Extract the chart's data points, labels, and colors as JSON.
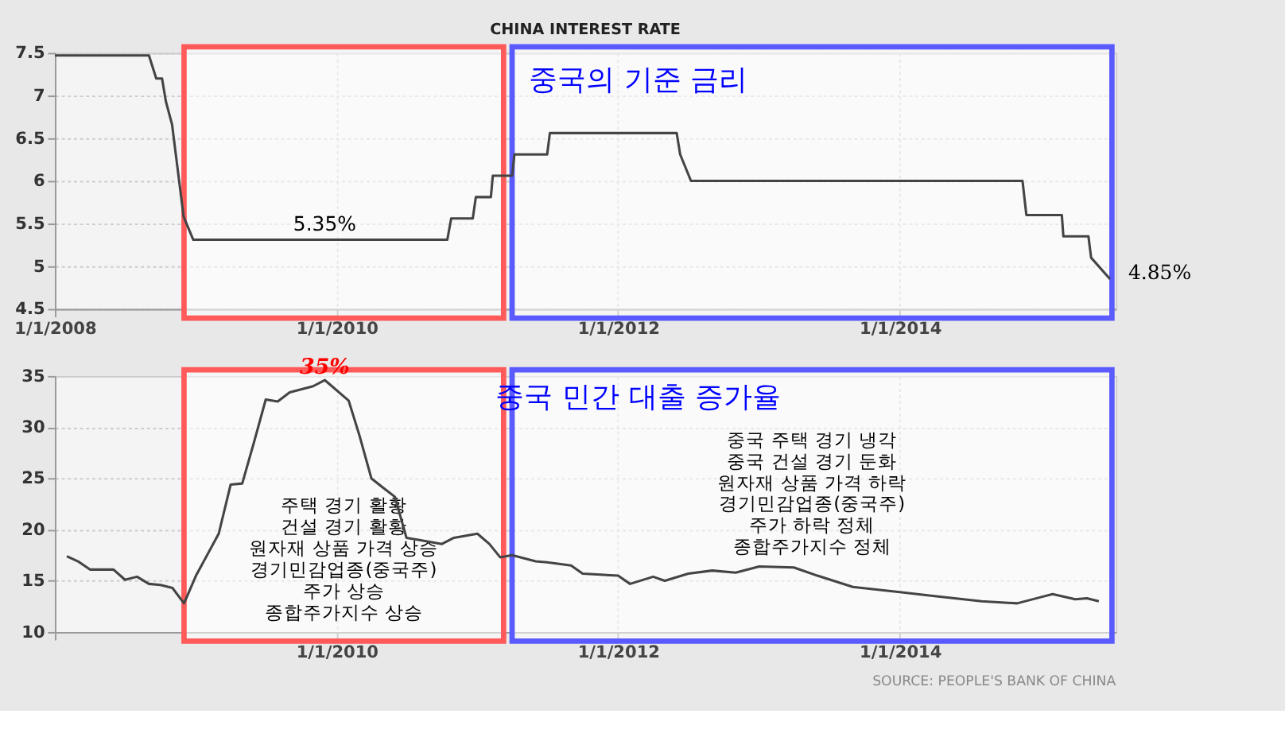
{
  "chart_data": [
    {
      "type": "line",
      "title": "CHINA INTEREST RATE",
      "subtitle": "중국의 기준 금리",
      "xlim": [
        "2008-01-01",
        "2015-07-15"
      ],
      "ylim": [
        4.5,
        7.5
      ],
      "yticks": [
        4.5,
        5,
        5.5,
        6,
        6.5,
        7,
        7.5
      ],
      "xticks": [
        {
          "value": "2008-01-01",
          "label": "1/1/2008"
        },
        {
          "value": "2010-01-01",
          "label": "1/1/2010"
        },
        {
          "value": "2012-01-01",
          "label": "1/1/2012"
        },
        {
          "value": "2014-01-01",
          "label": "1/1/2014"
        }
      ],
      "grid": true,
      "series": [
        {
          "color": "#444444",
          "x": [
            "2008-01-01",
            "2008-09-01",
            "2008-09-20",
            "2008-10-05",
            "2008-10-15",
            "2008-10-31",
            "2008-11-30",
            "2008-12-25",
            "2010-10-15",
            "2010-10-25",
            "2010-12-20",
            "2010-12-28",
            "2011-02-05",
            "2011-02-10",
            "2011-04-01",
            "2011-04-07",
            "2011-07-01",
            "2011-07-08",
            "2012-06-01",
            "2012-06-10",
            "2012-07-08",
            "2014-11-15",
            "2014-11-25",
            "2015-02-25",
            "2015-03-01",
            "2015-05-05",
            "2015-05-12",
            "2015-06-30"
          ],
          "values": [
            7.47,
            7.47,
            7.2,
            7.2,
            6.93,
            6.66,
            5.58,
            5.31,
            5.31,
            5.56,
            5.56,
            5.81,
            5.81,
            6.06,
            6.06,
            6.31,
            6.31,
            6.56,
            6.56,
            6.31,
            6.0,
            6.0,
            5.6,
            5.6,
            5.35,
            5.35,
            5.1,
            4.85
          ]
        }
      ],
      "bands": [
        {
          "axis": "x",
          "from": "2008-12-01",
          "to": "2011-03-10",
          "color": "#ff5a5a"
        },
        {
          "axis": "x",
          "from": "2011-04-01",
          "to": "2015-07-05",
          "color": "#5a5aff"
        }
      ],
      "annotations": [
        {
          "text": "5.35%",
          "x": "2009-12-01",
          "y": 5.31
        },
        {
          "text": "4.85%",
          "x": "2015-06-30",
          "y": 4.85
        }
      ]
    },
    {
      "type": "line",
      "title": "중국 민간 대출 증가율",
      "xlim": [
        "2008-01-01",
        "2015-07-15"
      ],
      "ylim": [
        10,
        35
      ],
      "yticks": [
        10,
        15,
        20,
        25,
        30,
        35
      ],
      "xticks": [
        {
          "value": "2008-01-01",
          "label": null
        },
        {
          "value": "2010-01-01",
          "label": "1/1/2010"
        },
        {
          "value": "2012-01-01",
          "label": "1/1/2012"
        },
        {
          "value": "2014-01-01",
          "label": "1/1/2014"
        }
      ],
      "grid": true,
      "series": [
        {
          "color": "#444444",
          "x": [
            "2008-02",
            "2008-03",
            "2008-04",
            "2008-06",
            "2008-07",
            "2008-08",
            "2008-09",
            "2008-10",
            "2008-11",
            "2008-12",
            "2009-01",
            "2009-03",
            "2009-04",
            "2009-05",
            "2009-06",
            "2009-07",
            "2009-08",
            "2009-09",
            "2009-11",
            "2009-12",
            "2010-02",
            "2010-03",
            "2010-04",
            "2010-05",
            "2010-06",
            "2010-07",
            "2010-08",
            "2010-10",
            "2010-11",
            "2011-01",
            "2011-02",
            "2011-03",
            "2011-04",
            "2011-06",
            "2011-07",
            "2011-09",
            "2011-10",
            "2012-01",
            "2012-02",
            "2012-04",
            "2012-05",
            "2012-07",
            "2012-09",
            "2012-11",
            "2013-01",
            "2013-04",
            "2013-06",
            "2013-09",
            "2014-01",
            "2014-04",
            "2014-08",
            "2014-11",
            "2015-01",
            "2015-02",
            "2015-04",
            "2015-05",
            "2015-06"
          ],
          "values": [
            17.4,
            16.9,
            16.1,
            16.1,
            15.1,
            15.4,
            14.7,
            14.6,
            14.3,
            12.8,
            15.5,
            19.6,
            24.4,
            24.5,
            28.6,
            32.7,
            32.5,
            33.4,
            34.0,
            34.6,
            32.6,
            29.2,
            25.0,
            24.1,
            23.2,
            19.2,
            19.0,
            18.6,
            19.2,
            19.6,
            18.6,
            17.3,
            17.5,
            16.9,
            16.8,
            16.5,
            15.7,
            15.5,
            14.7,
            15.4,
            15.0,
            15.7,
            16.0,
            15.8,
            16.4,
            16.3,
            15.5,
            14.4,
            13.9,
            13.5,
            13.0,
            12.8,
            13.4,
            13.7,
            13.2,
            13.3,
            13.0
          ]
        }
      ],
      "bands": [
        {
          "axis": "x",
          "from": "2008-12-01",
          "to": "2011-03-10",
          "color": "#ff5a5a",
          "label": "주택 경기 활황\n건설 경기 활황\n원자재 상품 가격 상승\n경기민감업종(중국주)\n주가 상승\n종합주가지수 상승"
        },
        {
          "axis": "x",
          "from": "2011-04-01",
          "to": "2015-07-05",
          "color": "#5a5aff",
          "label": "중국 주택 경기 냉각\n중국 건설 경기 둔화\n원자재 상품 가격 하락\n경기민감업종(중국주)\n주가 하락 정체\n종합주가지수 정체"
        }
      ],
      "annotations": [
        {
          "text": "35%",
          "x": "2009-12-01",
          "y": 34.6
        },
        "SOURCE: PEOPLE'S BANK OF CHINA"
      ]
    }
  ]
}
